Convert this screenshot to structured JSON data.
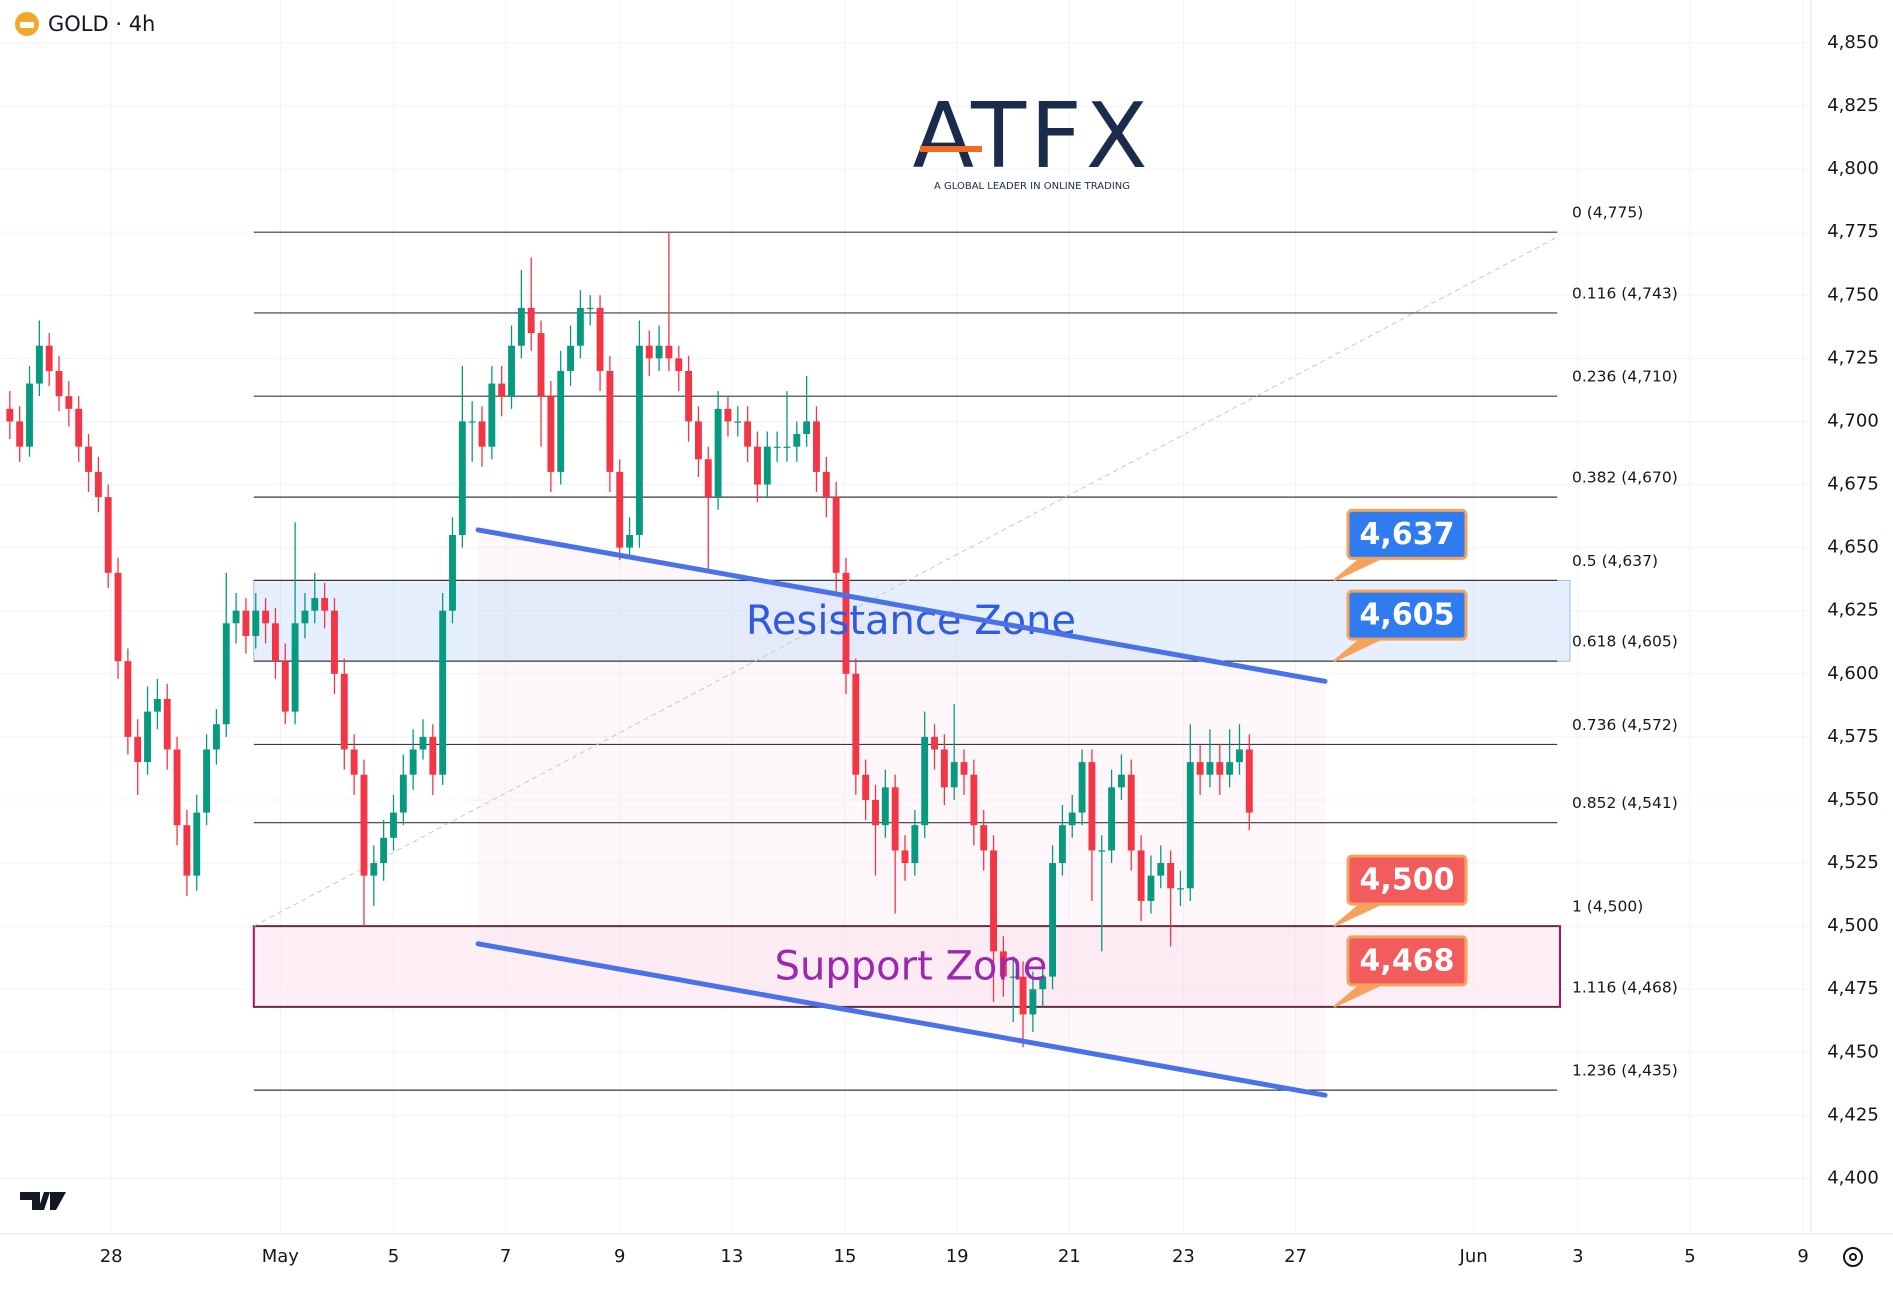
{
  "chart_data": {
    "type": "candlestick",
    "title": "GOLD · 4h",
    "brand": {
      "name": "ATFX",
      "tagline": "A GLOBAL LEADER IN ONLINE TRADING"
    },
    "up_color": "#089981",
    "down_color": "#f23645",
    "ylim": [
      4378,
      4867
    ],
    "yticks": [
      {
        "value": 4400,
        "label": "4,400"
      },
      {
        "value": 4425,
        "label": "4,425"
      },
      {
        "value": 4450,
        "label": "4,450"
      },
      {
        "value": 4475,
        "label": "4,475"
      },
      {
        "value": 4500,
        "label": "4,500"
      },
      {
        "value": 4525,
        "label": "4,525"
      },
      {
        "value": 4550,
        "label": "4,550"
      },
      {
        "value": 4575,
        "label": "4,575"
      },
      {
        "value": 4600,
        "label": "4,600"
      },
      {
        "value": 4625,
        "label": "4,625"
      },
      {
        "value": 4650,
        "label": "4,650"
      },
      {
        "value": 4675,
        "label": "4,675"
      },
      {
        "value": 4700,
        "label": "4,700"
      },
      {
        "value": 4725,
        "label": "4,725"
      },
      {
        "value": 4750,
        "label": "4,750"
      },
      {
        "value": 4775,
        "label": "4,775"
      },
      {
        "value": 4800,
        "label": "4,800"
      },
      {
        "value": 4825,
        "label": "4,825"
      },
      {
        "value": 4850,
        "label": "4,850"
      }
    ],
    "xlim": [
      -1,
      183.1
    ],
    "xticks": [
      {
        "value": 10.3,
        "label": "28"
      },
      {
        "value": 27.5,
        "label": "May"
      },
      {
        "value": 39.0,
        "label": "5"
      },
      {
        "value": 50.4,
        "label": "7"
      },
      {
        "value": 62,
        "label": "9"
      },
      {
        "value": 73.4,
        "label": "13"
      },
      {
        "value": 84.9,
        "label": "15"
      },
      {
        "value": 96.3,
        "label": "19"
      },
      {
        "value": 107.7,
        "label": "21"
      },
      {
        "value": 119.3,
        "label": "23"
      },
      {
        "value": 130.7,
        "label": "27"
      },
      {
        "value": 148.8,
        "label": "Jun"
      },
      {
        "value": 159.4,
        "label": "3"
      },
      {
        "value": 170.8,
        "label": "5"
      },
      {
        "value": 182.3,
        "label": "9"
      }
    ],
    "grid": true,
    "candles": [
      [
        4705,
        4712,
        4693,
        4700
      ],
      [
        4700,
        4706,
        4684,
        4690
      ],
      [
        4690,
        4722,
        4686,
        4715
      ],
      [
        4715,
        4740,
        4710,
        4730
      ],
      [
        4730,
        4735,
        4714,
        4720
      ],
      [
        4720,
        4726,
        4704,
        4710
      ],
      [
        4710,
        4716,
        4698,
        4705
      ],
      [
        4705,
        4710,
        4684,
        4690
      ],
      [
        4690,
        4695,
        4672,
        4680
      ],
      [
        4680,
        4686,
        4664,
        4670
      ],
      [
        4670,
        4675,
        4634,
        4640
      ],
      [
        4640,
        4646,
        4598,
        4605
      ],
      [
        4605,
        4610,
        4568,
        4575
      ],
      [
        4575,
        4582,
        4552,
        4565
      ],
      [
        4565,
        4595,
        4560,
        4585
      ],
      [
        4585,
        4598,
        4578,
        4590
      ],
      [
        4590,
        4596,
        4562,
        4570
      ],
      [
        4570,
        4575,
        4532,
        4540
      ],
      [
        4540,
        4546,
        4512,
        4520
      ],
      [
        4520,
        4552,
        4514,
        4545
      ],
      [
        4545,
        4576,
        4540,
        4570
      ],
      [
        4570,
        4586,
        4564,
        4580
      ],
      [
        4580,
        4640,
        4575,
        4620
      ],
      [
        4620,
        4632,
        4612,
        4625
      ],
      [
        4625,
        4630,
        4608,
        4615
      ],
      [
        4615,
        4632,
        4610,
        4625
      ],
      [
        4625,
        4630,
        4612,
        4620
      ],
      [
        4620,
        4626,
        4598,
        4605
      ],
      [
        4605,
        4612,
        4580,
        4585
      ],
      [
        4585,
        4660,
        4580,
        4620
      ],
      [
        4620,
        4632,
        4614,
        4625
      ],
      [
        4625,
        4640,
        4620,
        4630
      ],
      [
        4630,
        4636,
        4618,
        4625
      ],
      [
        4625,
        4630,
        4592,
        4600
      ],
      [
        4600,
        4606,
        4562,
        4570
      ],
      [
        4570,
        4576,
        4552,
        4560
      ],
      [
        4560,
        4566,
        4500,
        4520
      ],
      [
        4520,
        4532,
        4508,
        4525
      ],
      [
        4525,
        4542,
        4518,
        4535
      ],
      [
        4535,
        4552,
        4530,
        4545
      ],
      [
        4545,
        4568,
        4540,
        4560
      ],
      [
        4560,
        4578,
        4554,
        4570
      ],
      [
        4570,
        4582,
        4566,
        4575
      ],
      [
        4575,
        4580,
        4552,
        4560
      ],
      [
        4560,
        4632,
        4556,
        4625
      ],
      [
        4625,
        4662,
        4620,
        4655
      ],
      [
        4655,
        4722,
        4650,
        4700
      ],
      [
        4700,
        4708,
        4684,
        4700
      ],
      [
        4700,
        4706,
        4682,
        4690
      ],
      [
        4690,
        4722,
        4685,
        4715
      ],
      [
        4715,
        4722,
        4702,
        4710
      ],
      [
        4710,
        4738,
        4705,
        4730
      ],
      [
        4730,
        4760,
        4725,
        4745
      ],
      [
        4745,
        4765,
        4728,
        4735
      ],
      [
        4735,
        4740,
        4690,
        4710
      ],
      [
        4710,
        4716,
        4672,
        4680
      ],
      [
        4680,
        4728,
        4675,
        4720
      ],
      [
        4720,
        4738,
        4714,
        4730
      ],
      [
        4730,
        4752,
        4725,
        4745
      ],
      [
        4745,
        4750,
        4738,
        4745
      ],
      [
        4745,
        4750,
        4712,
        4720
      ],
      [
        4720,
        4726,
        4672,
        4680
      ],
      [
        4680,
        4685,
        4645,
        4650
      ],
      [
        4650,
        4662,
        4646,
        4655
      ],
      [
        4655,
        4740,
        4650,
        4730
      ],
      [
        4730,
        4736,
        4718,
        4725
      ],
      [
        4725,
        4738,
        4720,
        4730
      ],
      [
        4730,
        4775,
        4720,
        4725
      ],
      [
        4725,
        4730,
        4712,
        4720
      ],
      [
        4720,
        4726,
        4692,
        4700
      ],
      [
        4700,
        4706,
        4678,
        4685
      ],
      [
        4685,
        4690,
        4640,
        4670
      ],
      [
        4670,
        4712,
        4665,
        4705
      ],
      [
        4705,
        4710,
        4694,
        4700
      ],
      [
        4700,
        4706,
        4694,
        4700
      ],
      [
        4700,
        4706,
        4684,
        4690
      ],
      [
        4690,
        4696,
        4668,
        4675
      ],
      [
        4675,
        4696,
        4670,
        4690
      ],
      [
        4690,
        4696,
        4684,
        4690
      ],
      [
        4690,
        4712,
        4684,
        4690
      ],
      [
        4690,
        4700,
        4684,
        4695
      ],
      [
        4695,
        4718,
        4690,
        4700
      ],
      [
        4700,
        4706,
        4672,
        4680
      ],
      [
        4680,
        4686,
        4662,
        4670
      ],
      [
        4670,
        4676,
        4632,
        4640
      ],
      [
        4640,
        4646,
        4592,
        4600
      ],
      [
        4600,
        4606,
        4552,
        4560
      ],
      [
        4560,
        4566,
        4542,
        4550
      ],
      [
        4550,
        4556,
        4520,
        4540
      ],
      [
        4540,
        4562,
        4535,
        4555
      ],
      [
        4555,
        4560,
        4505,
        4530
      ],
      [
        4530,
        4536,
        4518,
        4525
      ],
      [
        4525,
        4546,
        4520,
        4540
      ],
      [
        4540,
        4585,
        4535,
        4575
      ],
      [
        4575,
        4580,
        4562,
        4570
      ],
      [
        4570,
        4576,
        4548,
        4555
      ],
      [
        4555,
        4588,
        4550,
        4565
      ],
      [
        4565,
        4570,
        4552,
        4560
      ],
      [
        4560,
        4566,
        4532,
        4540
      ],
      [
        4540,
        4546,
        4522,
        4530
      ],
      [
        4530,
        4536,
        4470,
        4490
      ],
      [
        4490,
        4496,
        4472,
        4480
      ],
      [
        4480,
        4488,
        4462,
        4480
      ],
      [
        4480,
        4486,
        4452,
        4465
      ],
      [
        4465,
        4482,
        4458,
        4475
      ],
      [
        4475,
        4486,
        4468,
        4480
      ],
      [
        4480,
        4532,
        4475,
        4525
      ],
      [
        4525,
        4548,
        4520,
        4540
      ],
      [
        4540,
        4552,
        4535,
        4545
      ],
      [
        4545,
        4570,
        4540,
        4565
      ],
      [
        4565,
        4570,
        4510,
        4530
      ],
      [
        4530,
        4536,
        4490,
        4530
      ],
      [
        4530,
        4562,
        4525,
        4555
      ],
      [
        4555,
        4568,
        4550,
        4560
      ],
      [
        4560,
        4566,
        4522,
        4530
      ],
      [
        4530,
        4536,
        4502,
        4510
      ],
      [
        4510,
        4528,
        4505,
        4520
      ],
      [
        4520,
        4532,
        4515,
        4525
      ],
      [
        4525,
        4530,
        4492,
        4515
      ],
      [
        4515,
        4522,
        4508,
        4515
      ],
      [
        4515,
        4580,
        4510,
        4565
      ],
      [
        4565,
        4572,
        4552,
        4560
      ],
      [
        4560,
        4578,
        4555,
        4565
      ],
      [
        4565,
        4572,
        4552,
        4560
      ],
      [
        4560,
        4578,
        4555,
        4565
      ],
      [
        4565,
        4580,
        4560,
        4570
      ],
      [
        4570,
        4576,
        4538,
        4545
      ]
    ],
    "fib": {
      "x": [
        24.8,
        157.3
      ],
      "levels": [
        {
          "value": 4775,
          "label": "0 (4,775)"
        },
        {
          "value": 4743,
          "label": "0.116 (4,743)"
        },
        {
          "value": 4710,
          "label": "0.236 (4,710)"
        },
        {
          "value": 4670,
          "label": "0.382 (4,670)"
        },
        {
          "value": 4637,
          "label": "0.5 (4,637)"
        },
        {
          "value": 4605,
          "label": "0.618 (4,605)"
        },
        {
          "value": 4572,
          "label": "0.736 (4,572)"
        },
        {
          "value": 4541,
          "label": "0.852 (4,541)"
        },
        {
          "value": 4500,
          "label": "1 (4,500)"
        },
        {
          "value": 4468,
          "label": "1.116 (4,468)"
        },
        {
          "value": 4435,
          "label": "1.236 (4,435)"
        }
      ]
    },
    "fib_trend": {
      "x": [
        24.8,
        157.3
      ],
      "y": [
        4500,
        4773
      ]
    },
    "trendlines": [
      {
        "x": [
          47.6,
          133.7
        ],
        "y": [
          4657,
          4597
        ]
      },
      {
        "x": [
          47.6,
          133.7
        ],
        "y": [
          4493,
          4433
        ]
      }
    ],
    "zones": [
      {
        "label": "Resistance Zone",
        "from": 4605,
        "to": 4637,
        "color": "#2f5be0"
      },
      {
        "label": "Support Zone",
        "from": 4468,
        "to": 4500,
        "color": "#9c27b0"
      }
    ],
    "badges": [
      {
        "value": 4637,
        "label": "4,637",
        "color": "#2f7cf0"
      },
      {
        "value": 4605,
        "label": "4,605",
        "color": "#2f7cf0"
      },
      {
        "value": 4500,
        "label": "4,500",
        "color": "#f35c5c"
      },
      {
        "value": 4468,
        "label": "4,468",
        "color": "#f35c5c"
      }
    ]
  }
}
